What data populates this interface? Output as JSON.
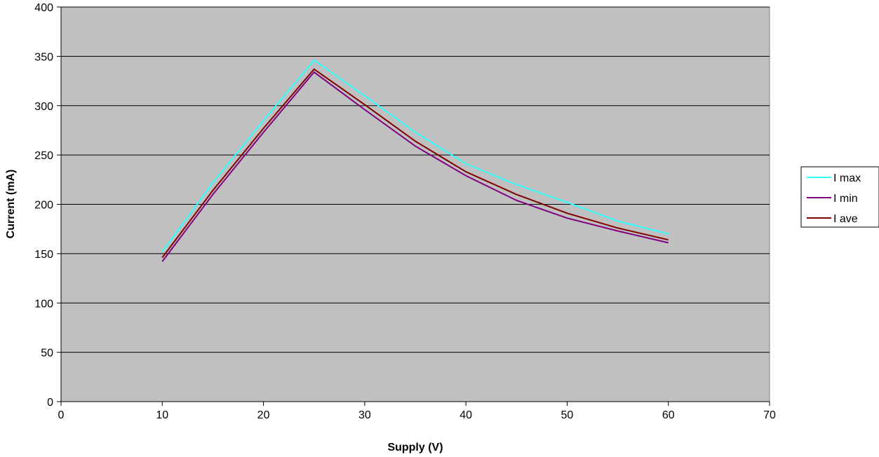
{
  "chart_data": {
    "type": "line",
    "title": "",
    "xlabel": "Supply (V)",
    "ylabel": "Current (mA)",
    "xlim": [
      0,
      70
    ],
    "ylim": [
      0,
      400
    ],
    "xticks": [
      0,
      10,
      20,
      30,
      40,
      50,
      60,
      70
    ],
    "yticks": [
      0,
      50,
      100,
      150,
      200,
      250,
      300,
      350,
      400
    ],
    "grid": "horizontal",
    "legend_position": "right",
    "plot_background": "#c0c0c0",
    "x": [
      10,
      15,
      20,
      25,
      30,
      35,
      40,
      45,
      50,
      55,
      60
    ],
    "series": [
      {
        "name": "I max",
        "color": "#33ffff",
        "values": [
          152,
          222,
          285,
          346,
          310,
          273,
          241,
          220,
          202,
          183,
          170
        ]
      },
      {
        "name": "I min",
        "color": "#800080",
        "values": [
          142,
          210,
          273,
          334,
          296,
          259,
          229,
          204,
          186,
          173,
          161
        ]
      },
      {
        "name": "I ave",
        "color": "#800000",
        "values": [
          146,
          214,
          277,
          337,
          301,
          264,
          233,
          210,
          191,
          176,
          164
        ]
      }
    ]
  }
}
